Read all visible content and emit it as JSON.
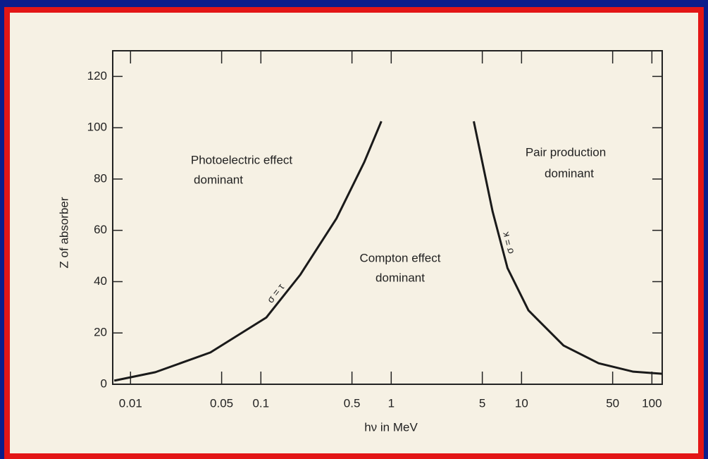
{
  "chart_data": {
    "type": "line",
    "x_label": "hν in MeV",
    "y_label": "Z of absorber",
    "xscale": "log",
    "xlim": [
      0.0073,
      120
    ],
    "ylim": [
      0,
      130
    ],
    "xticks": [
      0.01,
      0.05,
      0.1,
      0.5,
      1,
      5,
      10,
      50,
      100
    ],
    "yticks": [
      0,
      20,
      40,
      60,
      80,
      100,
      120
    ],
    "series": [
      {
        "name": "σ = τ",
        "color": "#1a1a1a",
        "x": [
          0.0075,
          0.0155,
          0.041,
          0.11,
          0.2,
          0.38,
          0.62,
          0.84
        ],
        "values": [
          1.4,
          4.7,
          12.4,
          26,
          42.6,
          64.6,
          86.5,
          102.5
        ]
      },
      {
        "name": "σ = κ",
        "color": "#1a1a1a",
        "x": [
          4.3,
          6.0,
          7.8,
          11.3,
          21,
          39,
          72,
          120
        ],
        "values": [
          102.5,
          67.3,
          45.3,
          28.8,
          15.1,
          8.2,
          4.9,
          4.1
        ]
      }
    ],
    "annotations": [
      [
        "Photoelectric effect",
        "dominant"
      ],
      [
        "Compton effect",
        "dominant"
      ],
      [
        "Pair production",
        "dominant"
      ]
    ]
  }
}
